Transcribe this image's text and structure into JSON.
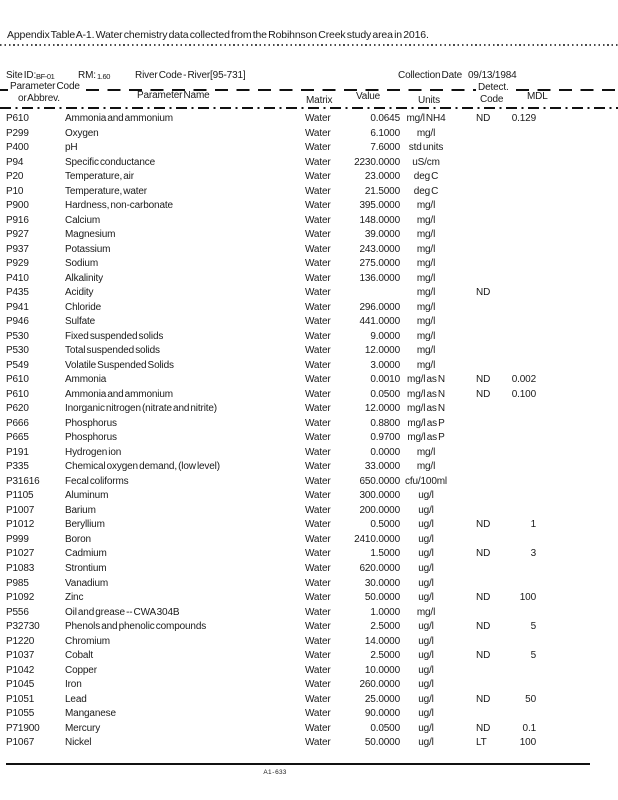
{
  "title": "Appendix Table A-1. Water chemistry data collected from the Robihnson Creek study area in 2016.",
  "site_header": {
    "site_id_label": "Site ID:",
    "site_id": "BF-01",
    "rm_label": "RM:",
    "rm_value": "1.60",
    "river_code": "River Code - River[95-731]",
    "collection_date_label": "Collection Date",
    "collection_date": "09/13/1984"
  },
  "columns": {
    "param_code_line1": "Parameter Code",
    "param_code_line2": "or Abbrev.",
    "param_name": "Parameter Name",
    "matrix": "Matrix",
    "value": "Value",
    "units": "Units",
    "detect_line1": "Detect.",
    "detect_line2": "Code",
    "mdl": "MDL"
  },
  "table": {
    "rows": [
      {
        "code": "P610",
        "name": "Ammonia and ammonium",
        "matrix": "Water",
        "value": "0.0645",
        "units": "mg/l NH4",
        "detect": "ND",
        "mdl": "0.129"
      },
      {
        "code": "P299",
        "name": "Oxygen",
        "matrix": "Water",
        "value": "6.1000",
        "units": "mg/l",
        "detect": "",
        "mdl": ""
      },
      {
        "code": "P400",
        "name": "pH",
        "matrix": "Water",
        "value": "7.6000",
        "units": "std units",
        "detect": "",
        "mdl": ""
      },
      {
        "code": "P94",
        "name": "Specific conductance",
        "matrix": "Water",
        "value": "2230.0000",
        "units": "uS/cm",
        "detect": "",
        "mdl": ""
      },
      {
        "code": "P20",
        "name": "Temperature, air",
        "matrix": "Water",
        "value": "23.0000",
        "units": "deg C",
        "detect": "",
        "mdl": ""
      },
      {
        "code": "P10",
        "name": "Temperature, water",
        "matrix": "Water",
        "value": "21.5000",
        "units": "deg C",
        "detect": "",
        "mdl": ""
      },
      {
        "code": "P900",
        "name": "Hardness, non-carbonate",
        "matrix": "Water",
        "value": "395.0000",
        "units": "mg/l",
        "detect": "",
        "mdl": ""
      },
      {
        "code": "P916",
        "name": "Calcium",
        "matrix": "Water",
        "value": "148.0000",
        "units": "mg/l",
        "detect": "",
        "mdl": ""
      },
      {
        "code": "P927",
        "name": "Magnesium",
        "matrix": "Water",
        "value": "39.0000",
        "units": "mg/l",
        "detect": "",
        "mdl": ""
      },
      {
        "code": "P937",
        "name": "Potassium",
        "matrix": "Water",
        "value": "243.0000",
        "units": "mg/l",
        "detect": "",
        "mdl": ""
      },
      {
        "code": "P929",
        "name": "Sodium",
        "matrix": "Water",
        "value": "275.0000",
        "units": "mg/l",
        "detect": "",
        "mdl": ""
      },
      {
        "code": "P410",
        "name": "Alkalinity",
        "matrix": "Water",
        "value": "136.0000",
        "units": "mg/l",
        "detect": "",
        "mdl": ""
      },
      {
        "code": "P435",
        "name": "Acidity",
        "matrix": "Water",
        "value": "",
        "units": "mg/l",
        "detect": "ND",
        "mdl": ""
      },
      {
        "code": "P941",
        "name": "Chloride",
        "matrix": "Water",
        "value": "296.0000",
        "units": "mg/l",
        "detect": "",
        "mdl": ""
      },
      {
        "code": "P946",
        "name": "Sulfate",
        "matrix": "Water",
        "value": "441.0000",
        "units": "mg/l",
        "detect": "",
        "mdl": ""
      },
      {
        "code": "P530",
        "name": "Fixed suspended solids",
        "matrix": "Water",
        "value": "9.0000",
        "units": "mg/l",
        "detect": "",
        "mdl": ""
      },
      {
        "code": "P530",
        "name": "Total suspended solids",
        "matrix": "Water",
        "value": "12.0000",
        "units": "mg/l",
        "detect": "",
        "mdl": ""
      },
      {
        "code": "P549",
        "name": "Volatile Suspended Solids",
        "matrix": "Water",
        "value": "3.0000",
        "units": "mg/l",
        "detect": "",
        "mdl": ""
      },
      {
        "code": "P610",
        "name": "Ammonia",
        "matrix": "Water",
        "value": "0.0010",
        "units": "mg/l as N",
        "detect": "ND",
        "mdl": "0.002"
      },
      {
        "code": "P610",
        "name": "Ammonia and ammonium",
        "matrix": "Water",
        "value": "0.0500",
        "units": "mg/l as N",
        "detect": "ND",
        "mdl": "0.100"
      },
      {
        "code": "P620",
        "name": "Inorganic nitrogen (nitrate and nitrite)",
        "matrix": "Water",
        "value": "12.0000",
        "units": "mg/l as N",
        "detect": "",
        "mdl": ""
      },
      {
        "code": "P666",
        "name": "Phosphorus",
        "matrix": "Water",
        "value": "0.8800",
        "units": "mg/l as P",
        "detect": "",
        "mdl": ""
      },
      {
        "code": "P665",
        "name": "Phosphorus",
        "matrix": "Water",
        "value": "0.9700",
        "units": "mg/l as P",
        "detect": "",
        "mdl": ""
      },
      {
        "code": "P191",
        "name": "Hydrogen ion",
        "matrix": "Water",
        "value": "0.0000",
        "units": "mg/l",
        "detect": "",
        "mdl": ""
      },
      {
        "code": "P335",
        "name": "Chemical oxygen demand, (low level)",
        "matrix": "Water",
        "value": "33.0000",
        "units": "mg/l",
        "detect": "",
        "mdl": ""
      },
      {
        "code": "P31616",
        "name": "Fecal coliforms",
        "matrix": "Water",
        "value": "650.0000",
        "units": "cfu/100ml",
        "detect": "",
        "mdl": ""
      },
      {
        "code": "P1105",
        "name": "Aluminum",
        "matrix": "Water",
        "value": "300.0000",
        "units": "ug/l",
        "detect": "",
        "mdl": ""
      },
      {
        "code": "P1007",
        "name": "Barium",
        "matrix": "Water",
        "value": "200.0000",
        "units": "ug/l",
        "detect": "",
        "mdl": ""
      },
      {
        "code": "P1012",
        "name": "Beryllium",
        "matrix": "Water",
        "value": "0.5000",
        "units": "ug/l",
        "detect": "ND",
        "mdl": "1"
      },
      {
        "code": "P999",
        "name": "Boron",
        "matrix": "Water",
        "value": "2410.0000",
        "units": "ug/l",
        "detect": "",
        "mdl": ""
      },
      {
        "code": "P1027",
        "name": "Cadmium",
        "matrix": "Water",
        "value": "1.5000",
        "units": "ug/l",
        "detect": "ND",
        "mdl": "3"
      },
      {
        "code": "P1083",
        "name": "Strontium",
        "matrix": "Water",
        "value": "620.0000",
        "units": "ug/l",
        "detect": "",
        "mdl": ""
      },
      {
        "code": "P985",
        "name": "Vanadium",
        "matrix": "Water",
        "value": "30.0000",
        "units": "ug/l",
        "detect": "",
        "mdl": ""
      },
      {
        "code": "P1092",
        "name": "Zinc",
        "matrix": "Water",
        "value": "50.0000",
        "units": "ug/l",
        "detect": "ND",
        "mdl": "100"
      },
      {
        "code": "P556",
        "name": "Oil and grease -- CWA 304B",
        "matrix": "Water",
        "value": "1.0000",
        "units": "mg/l",
        "detect": "",
        "mdl": ""
      },
      {
        "code": "P32730",
        "name": "Phenols and phenolic compounds",
        "matrix": "Water",
        "value": "2.5000",
        "units": "ug/l",
        "detect": "ND",
        "mdl": "5"
      },
      {
        "code": "P1220",
        "name": "Chromium",
        "matrix": "Water",
        "value": "14.0000",
        "units": "ug/l",
        "detect": "",
        "mdl": ""
      },
      {
        "code": "P1037",
        "name": "Cobalt",
        "matrix": "Water",
        "value": "2.5000",
        "units": "ug/l",
        "detect": "ND",
        "mdl": "5"
      },
      {
        "code": "P1042",
        "name": "Copper",
        "matrix": "Water",
        "value": "10.0000",
        "units": "ug/l",
        "detect": "",
        "mdl": ""
      },
      {
        "code": "P1045",
        "name": "Iron",
        "matrix": "Water",
        "value": "260.0000",
        "units": "ug/l",
        "detect": "",
        "mdl": ""
      },
      {
        "code": "P1051",
        "name": "Lead",
        "matrix": "Water",
        "value": "25.0000",
        "units": "ug/l",
        "detect": "ND",
        "mdl": "50"
      },
      {
        "code": "P1055",
        "name": "Manganese",
        "matrix": "Water",
        "value": "90.0000",
        "units": "ug/l",
        "detect": "",
        "mdl": ""
      },
      {
        "code": "P71900",
        "name": "Mercury",
        "matrix": "Water",
        "value": "0.0500",
        "units": "ug/l",
        "detect": "ND",
        "mdl": "0.1"
      },
      {
        "code": "P1067",
        "name": "Nickel",
        "matrix": "Water",
        "value": "50.0000",
        "units": "ug/l",
        "detect": "LT",
        "mdl": "100"
      }
    ]
  },
  "footer": {
    "page_label": "A1 - 633"
  }
}
